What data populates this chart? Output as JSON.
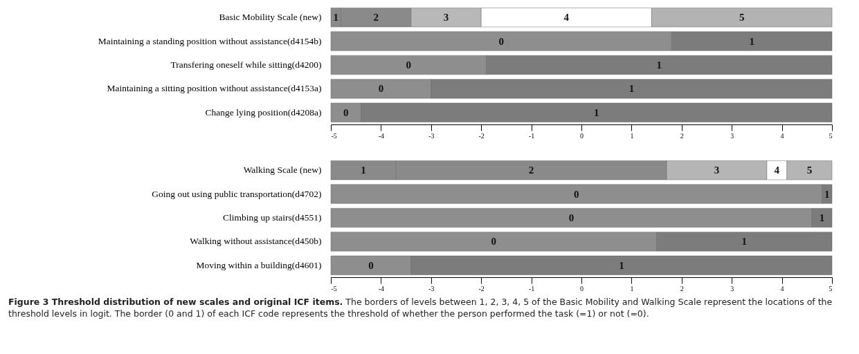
{
  "chart_data": [
    {
      "type": "bar",
      "orientation": "horizontal",
      "categories": [
        "Basic Mobility Scale (new)",
        "Maintaining a standing position without assistance(d4154b)",
        "Transfering oneself while sitting(d4200)",
        "Maintaining a sitting position without assistance(d4153a)",
        "Change lying position(d4208a)"
      ],
      "series": [
        {
          "base": [
            -5,
            -5,
            -5,
            -5,
            -5
          ],
          "values": [
            0.2,
            6.8,
            3.1,
            2.0,
            0.6
          ],
          "colors": [
            "#8a8a8a",
            "#8e8e8e",
            "#8e8e8e",
            "#8e8e8e",
            "#8e8e8e"
          ]
        },
        {
          "base": [
            -4.8,
            1.8,
            -1.9,
            -3.0,
            -4.4
          ],
          "values": [
            1.4,
            3.2,
            6.9,
            8.0,
            9.4
          ],
          "colors": [
            "#8a8a8a",
            "#7c7c7c",
            "#7c7c7c",
            "#7c7c7c",
            "#7c7c7c"
          ]
        },
        {
          "base": [
            -3.4,
            null,
            null,
            null,
            null
          ],
          "values": [
            1.4,
            null,
            null,
            null,
            null
          ],
          "colors": [
            "#b8b8b8",
            null,
            null,
            null,
            null
          ]
        },
        {
          "base": [
            -2.0,
            null,
            null,
            null,
            null
          ],
          "values": [
            3.4,
            null,
            null,
            null,
            null
          ],
          "colors": [
            "#ffffff",
            null,
            null,
            null,
            null
          ]
        },
        {
          "base": [
            1.4,
            null,
            null,
            null,
            null
          ],
          "values": [
            3.6,
            null,
            null,
            null,
            null
          ],
          "colors": [
            "#b3b3b3",
            null,
            null,
            null,
            null
          ]
        }
      ],
      "annotations": [
        {
          "text": "1",
          "x": -4.9,
          "y": "Basic Mobility Scale (new)"
        },
        {
          "text": "2",
          "x": -4.1,
          "y": "Basic Mobility Scale (new)"
        },
        {
          "text": "3",
          "x": -2.7,
          "y": "Basic Mobility Scale (new)"
        },
        {
          "text": "4",
          "x": -0.3,
          "y": "Basic Mobility Scale (new)"
        },
        {
          "text": "5",
          "x": 3.2,
          "y": "Basic Mobility Scale (new)"
        },
        {
          "text": "0",
          "x": -1.6,
          "y": "Maintaining a standing position without assistance(d4154b)"
        },
        {
          "text": "1",
          "x": 3.4,
          "y": "Maintaining a standing position without assistance(d4154b)"
        },
        {
          "text": "0",
          "x": -3.45,
          "y": "Transfering oneself while sitting(d4200)"
        },
        {
          "text": "1",
          "x": 1.55,
          "y": "Transfering oneself while sitting(d4200)"
        },
        {
          "text": "0",
          "x": -4.0,
          "y": "Maintaining a sitting position without assistance(d4153a)"
        },
        {
          "text": "1",
          "x": 1.0,
          "y": "Maintaining a sitting position without assistance(d4153a)"
        },
        {
          "text": "0",
          "x": -4.7,
          "y": "Change lying position(d4208a)"
        },
        {
          "text": "1",
          "x": 0.3,
          "y": "Change lying position(d4208a)"
        }
      ],
      "xlim": [
        -5,
        5
      ],
      "xticks": [
        -5,
        -4,
        -3,
        -2,
        -1,
        0,
        1,
        2,
        3,
        4,
        5
      ]
    },
    {
      "type": "bar",
      "orientation": "horizontal",
      "title": "Figure 3 Threshold distribution of new scales and original ICF items.",
      "categories": [
        "Walking Scale (new)",
        "Going out using public transportation(d4702)",
        "Climbing up stairs(d4551)",
        "Walking without assistance(d450b)",
        "Moving within a building(d4601)"
      ],
      "series": [
        {
          "base": [
            -5,
            -5,
            -5,
            -5,
            -5
          ],
          "values": [
            1.3,
            9.8,
            9.6,
            6.5,
            1.6
          ],
          "colors": [
            "#8a8a8a",
            "#8e8e8e",
            "#8e8e8e",
            "#8e8e8e",
            "#8e8e8e"
          ]
        },
        {
          "base": [
            -3.7,
            4.8,
            4.6,
            1.5,
            -3.4
          ],
          "values": [
            5.4,
            0.2,
            0.4,
            3.5,
            8.4
          ],
          "colors": [
            "#8a8a8a",
            "#7c7c7c",
            "#7c7c7c",
            "#7c7c7c",
            "#7c7c7c"
          ]
        },
        {
          "base": [
            1.7,
            null,
            null,
            null,
            null
          ],
          "values": [
            2.0,
            null,
            null,
            null,
            null
          ],
          "colors": [
            "#b5b5b5",
            null,
            null,
            null,
            null
          ]
        },
        {
          "base": [
            3.7,
            null,
            null,
            null,
            null
          ],
          "values": [
            0.4,
            null,
            null,
            null,
            null
          ],
          "colors": [
            "#ffffff",
            null,
            null,
            null,
            null
          ]
        },
        {
          "base": [
            4.1,
            null,
            null,
            null,
            null
          ],
          "values": [
            0.9,
            null,
            null,
            null,
            null
          ],
          "colors": [
            "#b5b5b5",
            null,
            null,
            null,
            null
          ]
        }
      ],
      "annotations": [
        "The borders of levels between 1, 2, 3, 4, 5 of the Basic Mobility and Walking Scale represent the locations of the threshold levels in logit. The border (0 and 1) of each ICF code represents the threshold of whether the person performed the task (=1) or not (=0).",
        {
          "text": "1",
          "x": -4.35,
          "y": "Walking Scale (new)"
        },
        {
          "text": "2",
          "x": -1.0,
          "y": "Walking Scale (new)"
        },
        {
          "text": "3",
          "x": 2.7,
          "y": "Walking Scale (new)"
        },
        {
          "text": "4",
          "x": 3.9,
          "y": "Walking Scale (new)"
        },
        {
          "text": "5",
          "x": 4.55,
          "y": "Walking Scale (new)"
        },
        {
          "text": "0",
          "x": -0.1,
          "y": "Going out using public transportation(d4702)"
        },
        {
          "text": "1",
          "x": 4.9,
          "y": "Going out using public transportation(d4702)"
        },
        {
          "text": "0",
          "x": -0.2,
          "y": "Climbing up stairs(d4551)"
        },
        {
          "text": "1",
          "x": 4.8,
          "y": "Climbing up stairs(d4551)"
        },
        {
          "text": "0",
          "x": -1.75,
          "y": "Walking without assistance(d450b)"
        },
        {
          "text": "1",
          "x": 3.25,
          "y": "Walking without assistance(d450b)"
        },
        {
          "text": "0",
          "x": -4.2,
          "y": "Moving within a building(d4601)"
        },
        {
          "text": "1",
          "x": 0.8,
          "y": "Moving within a building(d4601)"
        }
      ],
      "xlim": [
        -5,
        5
      ],
      "xticks": [
        -5,
        -4,
        -3,
        -2,
        -1,
        0,
        1,
        2,
        3,
        4,
        5
      ]
    }
  ]
}
